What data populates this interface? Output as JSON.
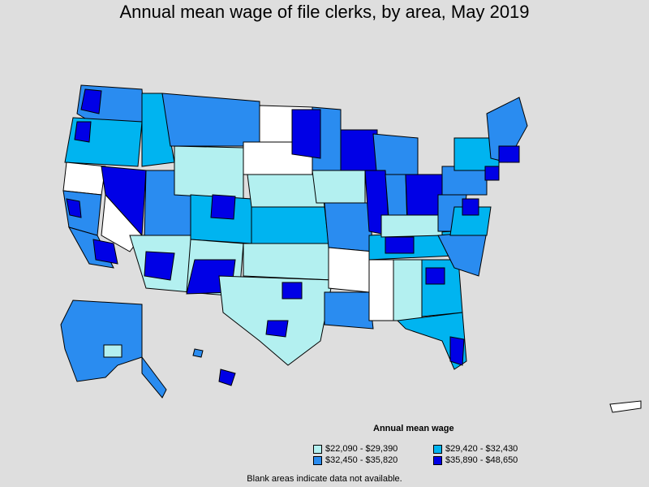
{
  "title": "Annual mean wage of file clerks, by area, May 2019",
  "legend": {
    "title": "Annual mean wage",
    "items": [
      {
        "label": "$22,090 - $29,390",
        "color": "#b3f0f0"
      },
      {
        "label": "$29,420 - $32,430",
        "color": "#00b4f0"
      },
      {
        "label": "$32,450 - $35,820",
        "color": "#2a8cf0"
      },
      {
        "label": "$35,890 - $48,650",
        "color": "#0000e6"
      }
    ]
  },
  "footnote": "Blank areas indicate data not available.",
  "colors": {
    "background": "#dedede",
    "no_data": "#ffffff",
    "border": "#000000"
  }
}
